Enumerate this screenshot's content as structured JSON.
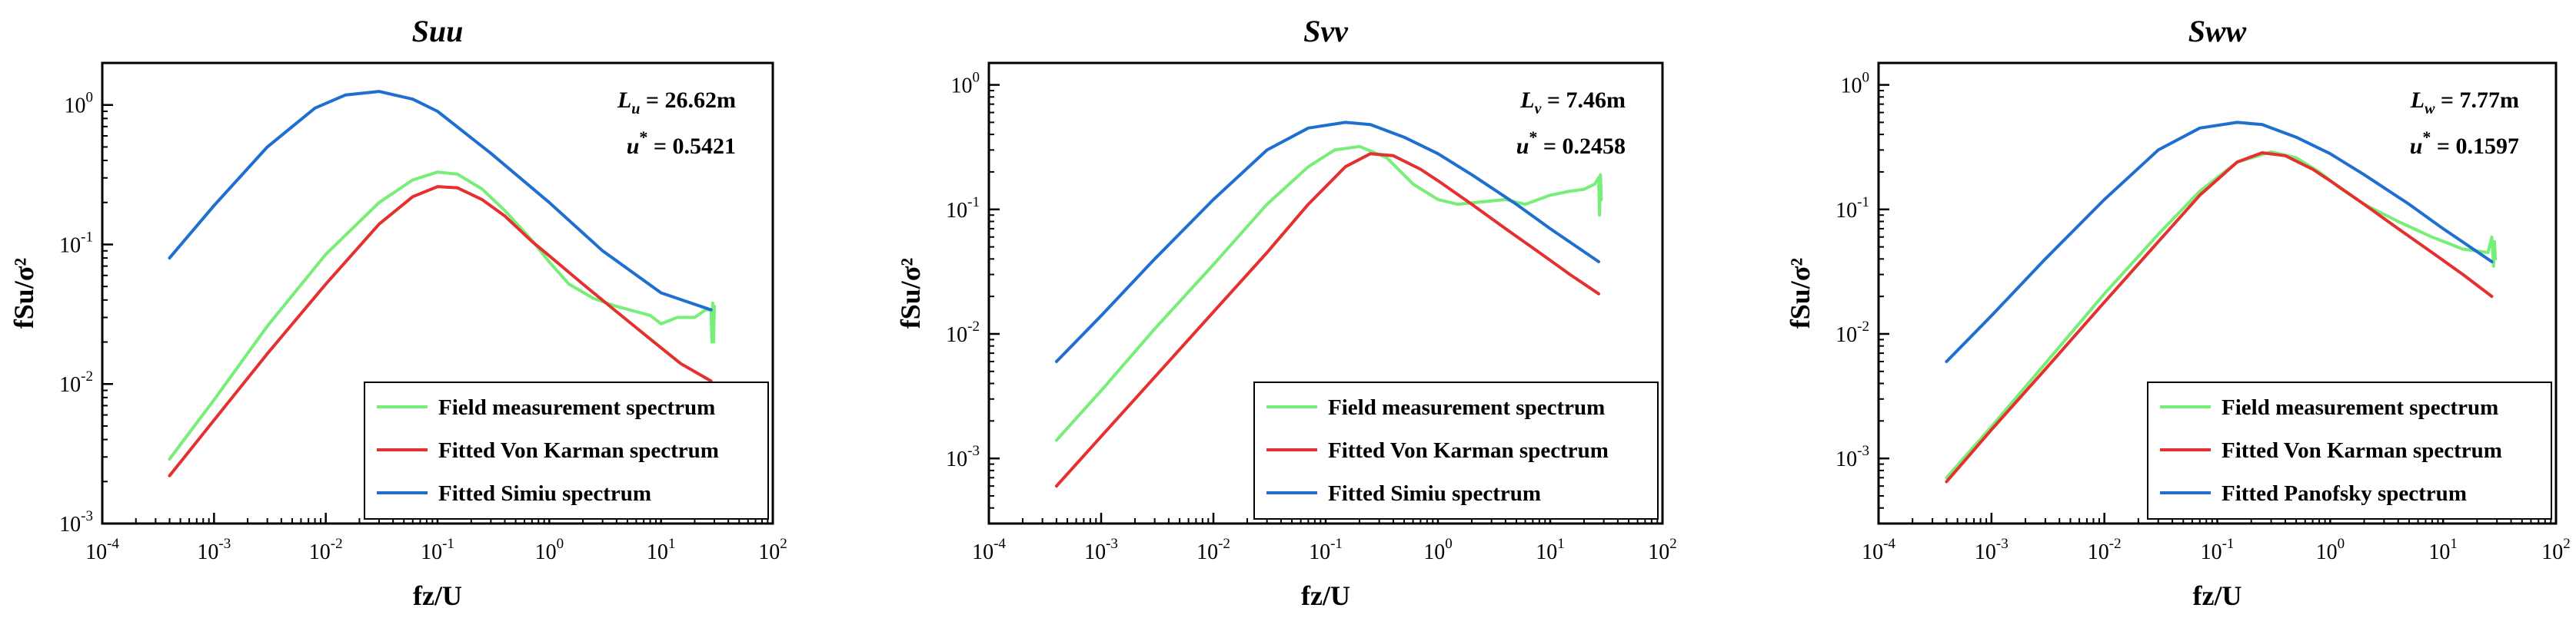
{
  "chart_data": [
    {
      "type": "line",
      "title": "Suu",
      "xlabel": "fz/U",
      "ylabel": "fSu/σ²",
      "xscale": "log",
      "yscale": "log",
      "xlim": [
        0.0001,
        100
      ],
      "ylim": [
        0.001,
        2
      ],
      "xticks": [
        {
          "base": "10",
          "exp": "-4"
        },
        {
          "base": "10",
          "exp": "-3"
        },
        {
          "base": "10",
          "exp": "-2"
        },
        {
          "base": "10",
          "exp": "-1"
        },
        {
          "base": "10",
          "exp": "0"
        },
        {
          "base": "10",
          "exp": "1"
        },
        {
          "base": "10",
          "exp": "2"
        }
      ],
      "yticks": [
        {
          "base": "10",
          "exp": "-3"
        },
        {
          "base": "10",
          "exp": "-2"
        },
        {
          "base": "10",
          "exp": "-1"
        },
        {
          "base": "10",
          "exp": "0"
        }
      ],
      "annotations": [
        {
          "sym": "L",
          "sub": "u",
          "rest": " = 26.62m"
        },
        {
          "sym": "u",
          "sup": "*",
          "rest": " = 0.5421"
        }
      ],
      "legend_position": "bottom-right",
      "series": [
        {
          "name": "Field measurement spectrum",
          "color": "#77ee77",
          "x": [
            0.0004,
            0.001,
            0.003,
            0.01,
            0.03,
            0.06,
            0.1,
            0.15,
            0.25,
            0.4,
            0.7,
            1.0,
            1.5,
            2.5,
            4,
            6,
            8,
            10,
            14,
            20,
            25,
            28,
            28.5,
            29,
            29.5,
            30
          ],
          "y": [
            0.0029,
            0.0077,
            0.026,
            0.085,
            0.2,
            0.29,
            0.33,
            0.32,
            0.25,
            0.175,
            0.107,
            0.075,
            0.052,
            0.041,
            0.036,
            0.033,
            0.031,
            0.027,
            0.03,
            0.03,
            0.034,
            0.034,
            0.02,
            0.038,
            0.02,
            0.036
          ]
        },
        {
          "name": "Fitted Von Karman spectrum",
          "color": "#e53030",
          "x": [
            0.0004,
            0.001,
            0.003,
            0.01,
            0.03,
            0.06,
            0.1,
            0.15,
            0.25,
            0.4,
            0.7,
            1.0,
            2,
            4,
            8,
            15,
            28
          ],
          "y": [
            0.0022,
            0.0055,
            0.0165,
            0.052,
            0.14,
            0.22,
            0.26,
            0.255,
            0.21,
            0.16,
            0.105,
            0.083,
            0.052,
            0.033,
            0.021,
            0.014,
            0.0105
          ]
        },
        {
          "name": "Fitted Simiu spectrum",
          "color": "#1f6fd0",
          "x": [
            0.0004,
            0.001,
            0.003,
            0.008,
            0.015,
            0.03,
            0.06,
            0.1,
            0.3,
            1,
            3,
            10,
            28
          ],
          "y": [
            0.08,
            0.19,
            0.5,
            0.95,
            1.18,
            1.25,
            1.1,
            0.9,
            0.45,
            0.2,
            0.09,
            0.045,
            0.034
          ]
        }
      ]
    },
    {
      "type": "line",
      "title": "Svv",
      "xlabel": "fz/U",
      "ylabel": "fSu/σ²",
      "xscale": "log",
      "yscale": "log",
      "xlim": [
        0.0001,
        100
      ],
      "ylim": [
        0.0003,
        1.5
      ],
      "xticks": [
        {
          "base": "10",
          "exp": "-4"
        },
        {
          "base": "10",
          "exp": "-3"
        },
        {
          "base": "10",
          "exp": "-2"
        },
        {
          "base": "10",
          "exp": "-1"
        },
        {
          "base": "10",
          "exp": "0"
        },
        {
          "base": "10",
          "exp": "1"
        },
        {
          "base": "10",
          "exp": "2"
        }
      ],
      "yticks": [
        {
          "base": "10",
          "exp": "-3"
        },
        {
          "base": "10",
          "exp": "-2"
        },
        {
          "base": "10",
          "exp": "-1"
        },
        {
          "base": "10",
          "exp": "0"
        }
      ],
      "annotations": [
        {
          "sym": "L",
          "sub": "v",
          "rest": " = 7.46m"
        },
        {
          "sym": "u",
          "sup": "*",
          "rest": " = 0.2458"
        }
      ],
      "legend_position": "bottom-right",
      "series": [
        {
          "name": "Field measurement spectrum",
          "color": "#77ee77",
          "x": [
            0.0004,
            0.001,
            0.003,
            0.01,
            0.03,
            0.07,
            0.12,
            0.2,
            0.35,
            0.6,
            1,
            1.5,
            2.5,
            4,
            6,
            10,
            15,
            20,
            25,
            27,
            27.5,
            28,
            28.5
          ],
          "y": [
            0.0014,
            0.0035,
            0.011,
            0.036,
            0.11,
            0.22,
            0.3,
            0.32,
            0.26,
            0.16,
            0.12,
            0.11,
            0.115,
            0.12,
            0.11,
            0.13,
            0.14,
            0.145,
            0.16,
            0.18,
            0.09,
            0.19,
            0.12
          ]
        },
        {
          "name": "Fitted Von Karman spectrum",
          "color": "#e53030",
          "x": [
            0.0004,
            0.001,
            0.003,
            0.01,
            0.03,
            0.07,
            0.15,
            0.25,
            0.4,
            0.7,
            1.0,
            2,
            4,
            8,
            15,
            27
          ],
          "y": [
            0.0006,
            0.0015,
            0.0045,
            0.015,
            0.045,
            0.11,
            0.22,
            0.28,
            0.27,
            0.21,
            0.17,
            0.11,
            0.07,
            0.045,
            0.03,
            0.021
          ]
        },
        {
          "name": "Fitted Simiu spectrum",
          "color": "#1f6fd0",
          "x": [
            0.0004,
            0.001,
            0.003,
            0.01,
            0.03,
            0.07,
            0.15,
            0.25,
            0.5,
            1,
            2,
            5,
            10,
            27
          ],
          "y": [
            0.006,
            0.014,
            0.04,
            0.12,
            0.3,
            0.45,
            0.5,
            0.48,
            0.38,
            0.28,
            0.19,
            0.11,
            0.07,
            0.038
          ]
        }
      ]
    },
    {
      "type": "line",
      "title": "Sww",
      "xlabel": "fz/U",
      "ylabel": "fSu/σ²",
      "xscale": "log",
      "yscale": "log",
      "xlim": [
        0.0001,
        100
      ],
      "ylim": [
        0.0003,
        1.5
      ],
      "xticks": [
        {
          "base": "10",
          "exp": "-4"
        },
        {
          "base": "10",
          "exp": "-3"
        },
        {
          "base": "10",
          "exp": "-2"
        },
        {
          "base": "10",
          "exp": "-1"
        },
        {
          "base": "10",
          "exp": "0"
        },
        {
          "base": "10",
          "exp": "1"
        },
        {
          "base": "10",
          "exp": "2"
        }
      ],
      "yticks": [
        {
          "base": "10",
          "exp": "-3"
        },
        {
          "base": "10",
          "exp": "-2"
        },
        {
          "base": "10",
          "exp": "-1"
        },
        {
          "base": "10",
          "exp": "0"
        }
      ],
      "annotations": [
        {
          "sym": "L",
          "sub": "w",
          "rest": " = 7.77m"
        },
        {
          "sym": "u",
          "sup": "*",
          "rest": " = 0.1597"
        }
      ],
      "legend_position": "bottom-right",
      "series": [
        {
          "name": "Field measurement spectrum",
          "color": "#77ee77",
          "x": [
            0.0004,
            0.001,
            0.003,
            0.01,
            0.03,
            0.07,
            0.15,
            0.3,
            0.5,
            0.8,
            1.2,
            2,
            4,
            8,
            15,
            25,
            27,
            28,
            28.5,
            29
          ],
          "y": [
            0.0007,
            0.0018,
            0.0058,
            0.021,
            0.063,
            0.14,
            0.24,
            0.29,
            0.26,
            0.2,
            0.15,
            0.11,
            0.08,
            0.06,
            0.048,
            0.045,
            0.06,
            0.035,
            0.055,
            0.04
          ]
        },
        {
          "name": "Fitted Von Karman spectrum",
          "color": "#e53030",
          "x": [
            0.0004,
            0.001,
            0.003,
            0.01,
            0.03,
            0.07,
            0.15,
            0.25,
            0.4,
            0.7,
            1.0,
            2,
            4,
            8,
            15,
            27
          ],
          "y": [
            0.00065,
            0.0017,
            0.0052,
            0.018,
            0.055,
            0.13,
            0.24,
            0.285,
            0.27,
            0.21,
            0.17,
            0.11,
            0.07,
            0.045,
            0.03,
            0.02
          ]
        },
        {
          "name": "Fitted Panofsky spectrum",
          "color": "#1f6fd0",
          "x": [
            0.0004,
            0.001,
            0.003,
            0.01,
            0.03,
            0.07,
            0.15,
            0.25,
            0.5,
            1,
            2,
            5,
            10,
            27
          ],
          "y": [
            0.006,
            0.014,
            0.04,
            0.12,
            0.3,
            0.45,
            0.5,
            0.48,
            0.38,
            0.28,
            0.19,
            0.11,
            0.07,
            0.038
          ]
        }
      ]
    }
  ]
}
